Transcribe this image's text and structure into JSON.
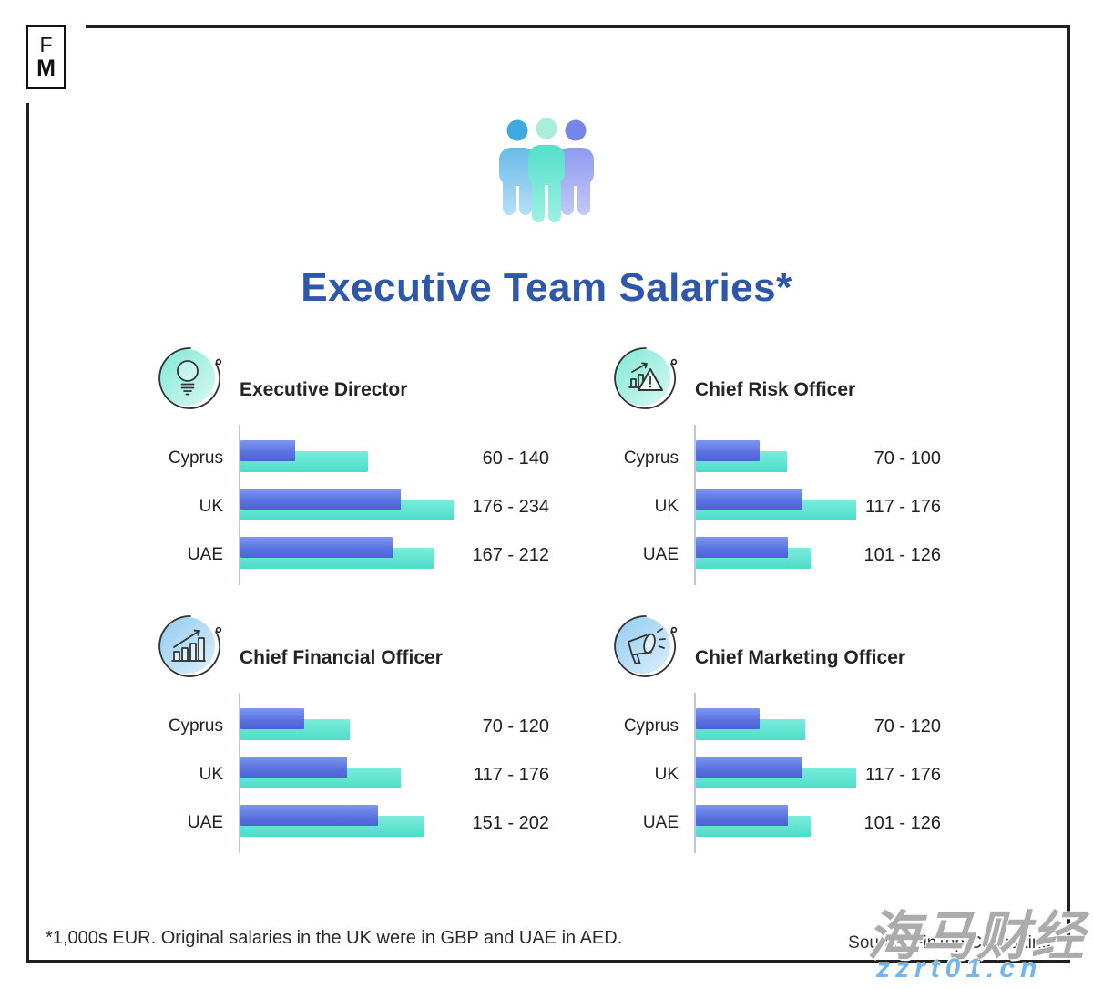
{
  "brand": {
    "logo_top": "F",
    "logo_bottom": "M"
  },
  "header": {
    "title": "Executive Team Salaries*",
    "icon": "team-people-icon"
  },
  "chart_data": [
    {
      "type": "bar",
      "orientation": "horizontal",
      "title": "Executive Director",
      "icon": "lightbulb-icon",
      "categories": [
        "Cyprus",
        "UK",
        "UAE"
      ],
      "series": [
        {
          "name": "min salary",
          "values": [
            60,
            176,
            167
          ]
        },
        {
          "name": "max salary",
          "values": [
            140,
            234,
            212
          ]
        }
      ],
      "labels": [
        "60 - 140",
        "176 - 234",
        "167 - 212"
      ],
      "unit": "1,000s EUR",
      "xlim": [
        0,
        260
      ],
      "grid": false,
      "legend": "none"
    },
    {
      "type": "bar",
      "orientation": "horizontal",
      "title": "Chief Risk Officer",
      "icon": "risk-chart-icon",
      "categories": [
        "Cyprus",
        "UK",
        "UAE"
      ],
      "series": [
        {
          "name": "min salary",
          "values": [
            70,
            117,
            101
          ]
        },
        {
          "name": "max salary",
          "values": [
            100,
            176,
            126
          ]
        }
      ],
      "labels": [
        "70 - 100",
        "117 - 176",
        "101 - 126"
      ],
      "unit": "1,000s EUR",
      "xlim": [
        0,
        260
      ],
      "grid": false,
      "legend": "none"
    },
    {
      "type": "bar",
      "orientation": "horizontal",
      "title": "Chief Financial Officer",
      "icon": "growth-chart-icon",
      "categories": [
        "Cyprus",
        "UK",
        "UAE"
      ],
      "series": [
        {
          "name": "min salary",
          "values": [
            70,
            117,
            151
          ]
        },
        {
          "name": "max salary",
          "values": [
            120,
            176,
            202
          ]
        }
      ],
      "labels": [
        "70 - 120",
        "117 - 176",
        "151 - 202"
      ],
      "unit": "1,000s EUR",
      "xlim": [
        0,
        260
      ],
      "grid": false,
      "legend": "none"
    },
    {
      "type": "bar",
      "orientation": "horizontal",
      "title": "Chief Marketing Officer",
      "icon": "megaphone-icon",
      "categories": [
        "Cyprus",
        "UK",
        "UAE"
      ],
      "series": [
        {
          "name": "min salary",
          "values": [
            70,
            117,
            101
          ]
        },
        {
          "name": "max salary",
          "values": [
            120,
            176,
            126
          ]
        }
      ],
      "labels": [
        "70 - 120",
        "117 - 176",
        "101 - 126"
      ],
      "unit": "1,000s EUR",
      "xlim": [
        0,
        260
      ],
      "grid": false,
      "legend": "none"
    }
  ],
  "footer": {
    "note": "*1,000s EUR. Original salaries in the UK were in GBP and UAE in AED.",
    "source": "Source: FinTop Consulting"
  },
  "watermark": {
    "line1": "海马财经",
    "line2": "zzrt01.cn"
  },
  "colors": {
    "title": "#2e56a9",
    "bar_min": "#5b74e0",
    "bar_max": "#57e3d0",
    "axis": "#b7c6ea",
    "badge_teal": "#7fe9d6",
    "badge_blue": "#9fd0f0",
    "frame": "#1f1f1f",
    "watermark_url": "#72b6ec"
  }
}
